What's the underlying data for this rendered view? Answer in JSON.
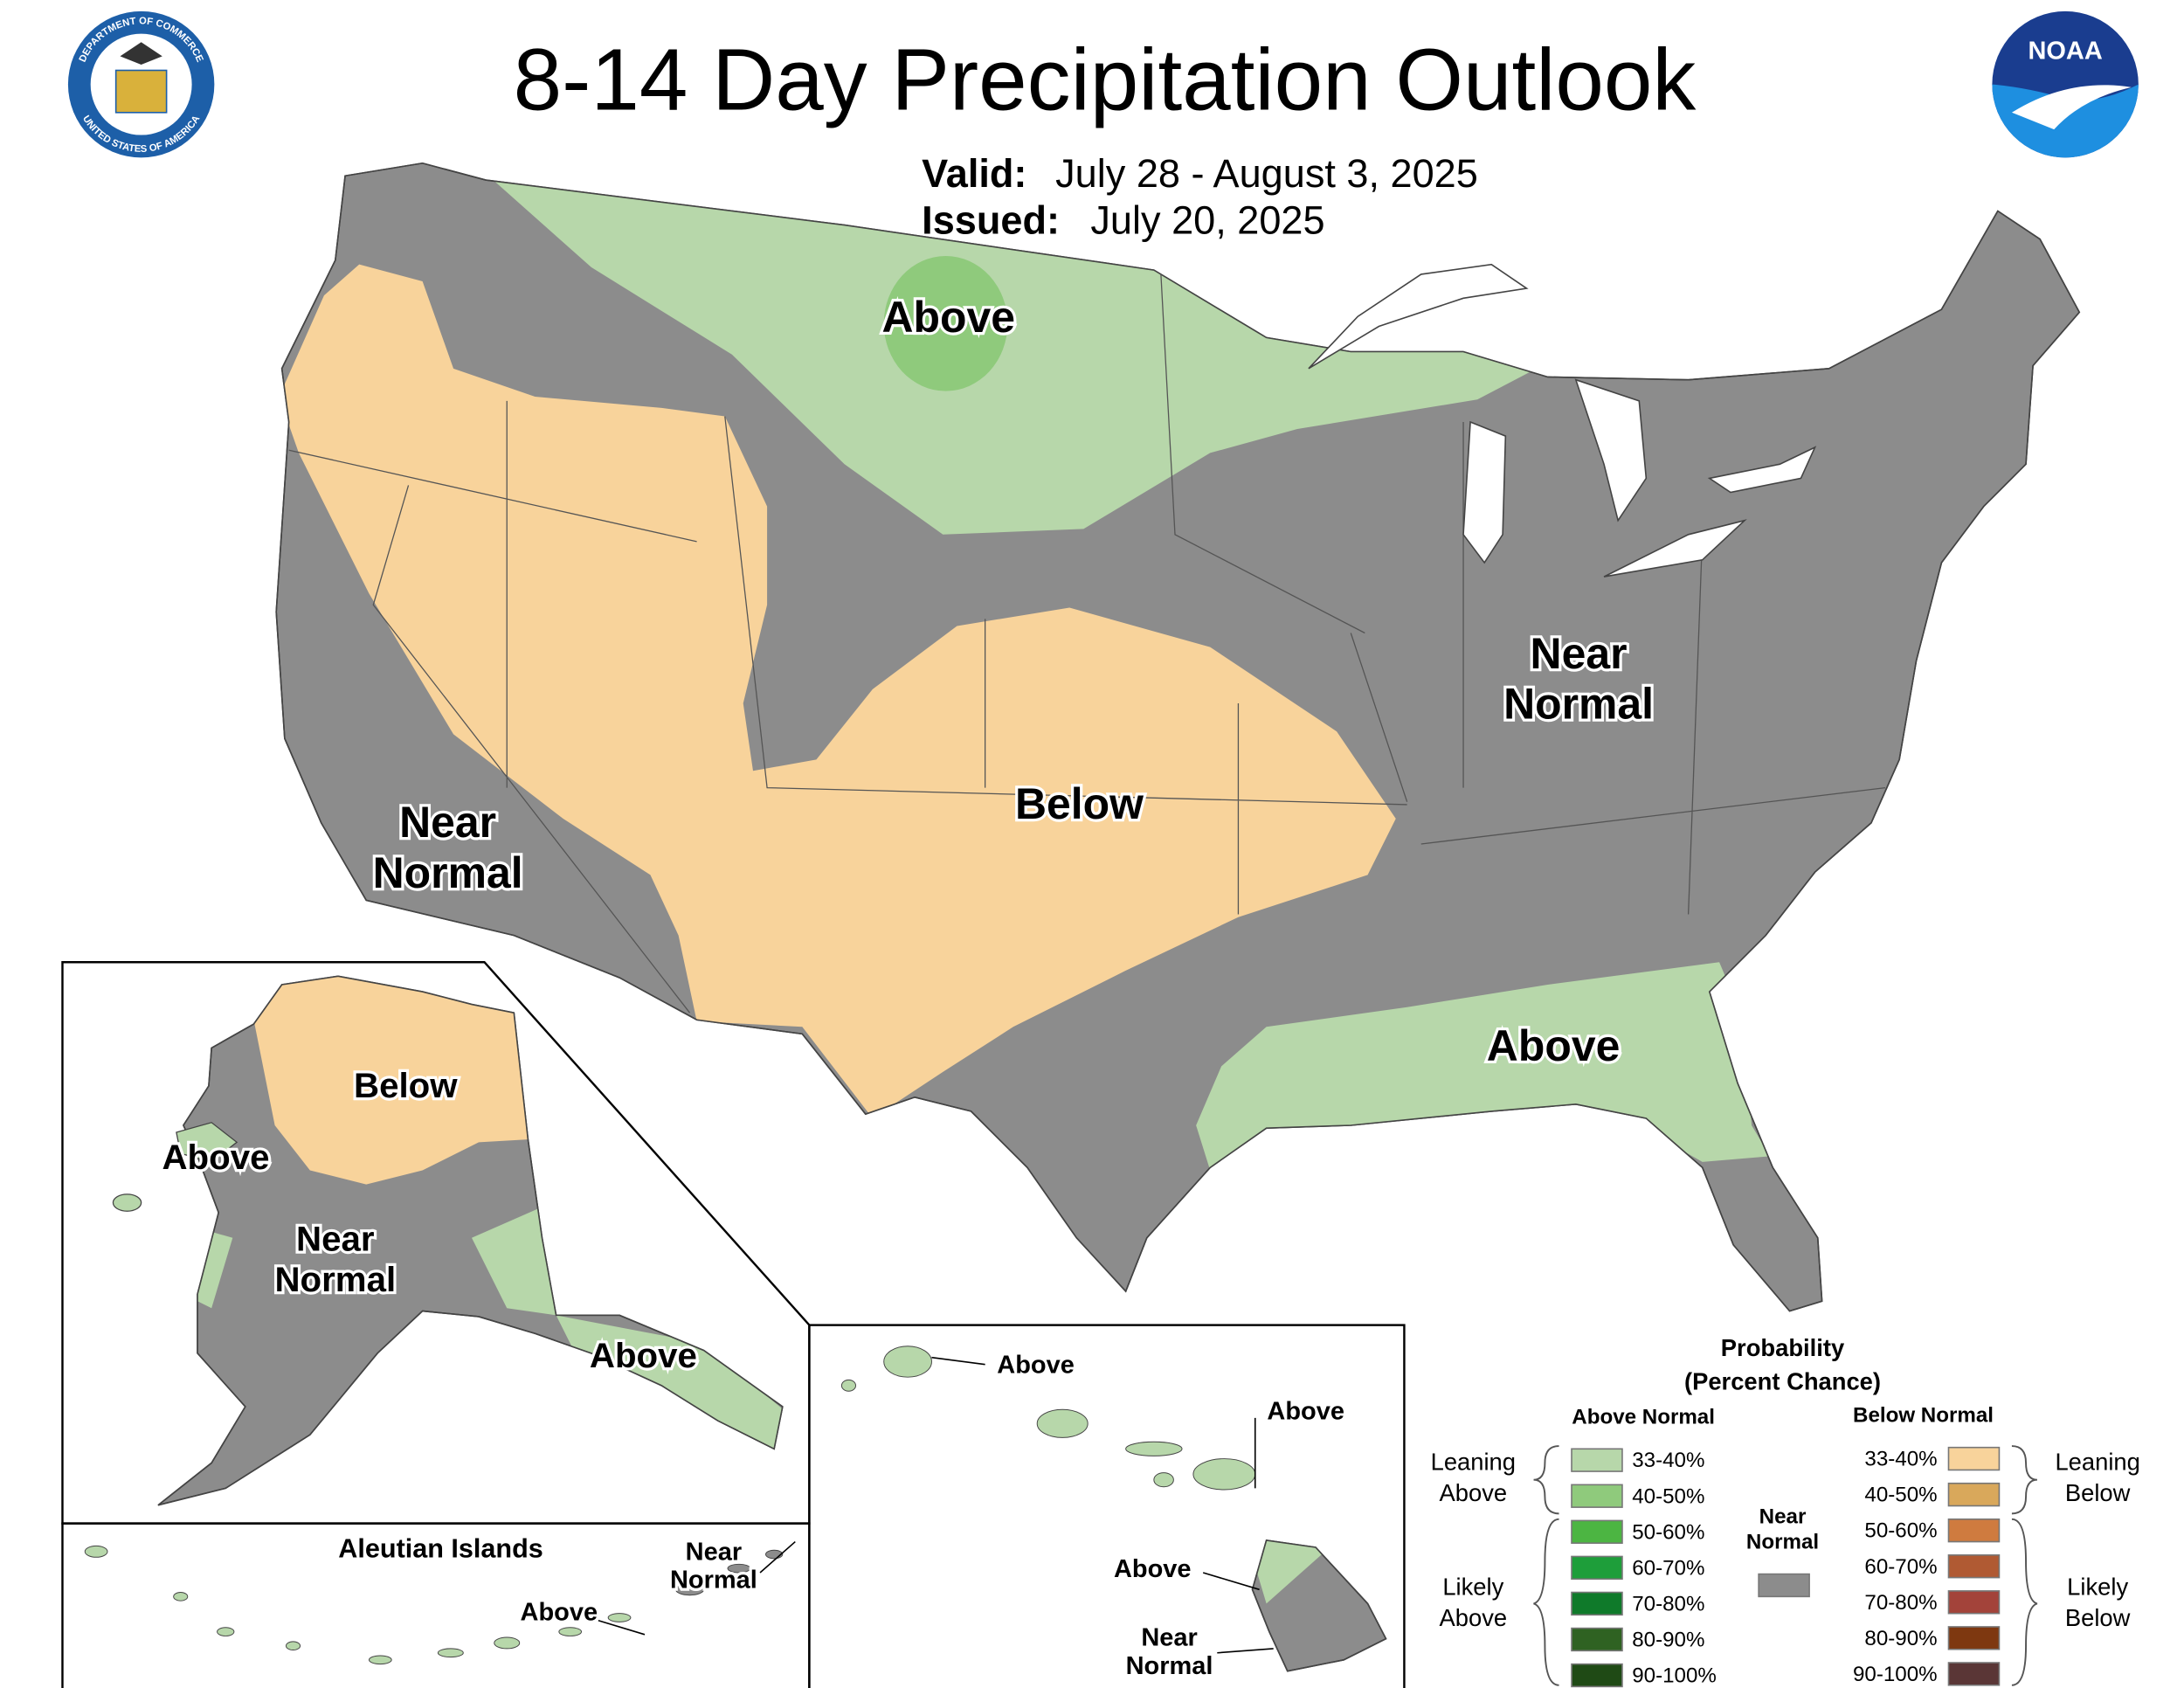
{
  "header": {
    "title": "8-14 Day Precipitation Outlook",
    "valid_label": "Valid:",
    "valid": "July 28 - August 3, 2025",
    "issued_label": "Issued:",
    "issued": "July 20, 2025"
  },
  "logos": {
    "seal_top": "DEPARTMENT OF COMMERCE",
    "seal_bottom": "UNITED STATES OF AMERICA",
    "noaa": "NOAA"
  },
  "conus": {
    "labels": [
      [
        "Above"
      ],
      [
        "Near",
        "Normal"
      ],
      [
        "Near",
        "Normal"
      ],
      [
        "Below"
      ],
      [
        "Above"
      ]
    ]
  },
  "alaska": {
    "labels": [
      [
        "Below"
      ],
      [
        "Above"
      ],
      [
        "Near",
        "Normal"
      ],
      [
        "Above"
      ]
    ]
  },
  "aleutian": {
    "title": "Aleutian Islands",
    "labels": [
      [
        "Above"
      ],
      [
        "Near",
        "Normal"
      ]
    ]
  },
  "hawaii": {
    "labels": [
      [
        "Above"
      ],
      [
        "Above"
      ],
      [
        "Above"
      ],
      [
        "Near",
        "Normal"
      ]
    ]
  },
  "legend": {
    "title": [
      "Probability",
      "(Percent Chance)"
    ],
    "above_header": "Above Normal",
    "below_header": "Below Normal",
    "above": [
      {
        "label": "33-40%",
        "color": "#b7d7aa"
      },
      {
        "label": "40-50%",
        "color": "#8fca7c"
      },
      {
        "label": "50-60%",
        "color": "#4cb542"
      },
      {
        "label": "60-70%",
        "color": "#1e9e3a"
      },
      {
        "label": "70-80%",
        "color": "#0f7a2a"
      },
      {
        "label": "80-90%",
        "color": "#2f6222"
      },
      {
        "label": "90-100%",
        "color": "#1f4a15"
      }
    ],
    "below": [
      {
        "label": "33-40%",
        "color": "#f8d39b"
      },
      {
        "label": "40-50%",
        "color": "#d9a85b"
      },
      {
        "label": "50-60%",
        "color": "#cf7b3f"
      },
      {
        "label": "60-70%",
        "color": "#b05a33"
      },
      {
        "label": "70-80%",
        "color": "#a3433a"
      },
      {
        "label": "80-90%",
        "color": "#7e3810"
      },
      {
        "label": "90-100%",
        "color": "#5a3636"
      }
    ],
    "near_normal": {
      "label": [
        "Near",
        "Normal"
      ],
      "color": "#8c8c8c"
    },
    "brackets": {
      "leaning_above": [
        "Leaning",
        "Above"
      ],
      "likely_above": [
        "Likely",
        "Above"
      ],
      "leaning_below": [
        "Leaning",
        "Below"
      ],
      "likely_below": [
        "Likely",
        "Below"
      ]
    }
  }
}
